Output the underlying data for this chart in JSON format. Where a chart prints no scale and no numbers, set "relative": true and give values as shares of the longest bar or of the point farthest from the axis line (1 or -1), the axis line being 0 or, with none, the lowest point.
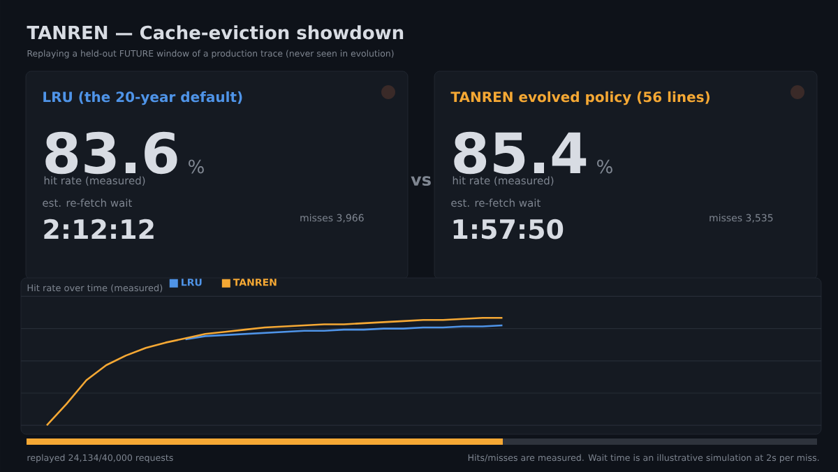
{
  "chart_data": [
    {
      "type": "other",
      "title": "TANREN — Cache-eviction showdown",
      "subtitle": "Replaying a held-out FUTURE window of a production trace (never seen in evolution)",
      "annotations": [
        "LRU (the 20-year default)",
        "83.6",
        "%",
        "hit rate (measured)",
        "est. re-fetch wait",
        "2:12:12",
        "misses 3,966",
        "vs",
        "TANREN evolved policy (56 lines)",
        "85.4",
        "%",
        "hit rate (measured)",
        "est. re-fetch wait",
        "1:57:50",
        "misses 3,535"
      ]
    },
    {
      "type": "line",
      "title": "Hit rate over time (measured)",
      "relative": true,
      "grid": "y",
      "legend": "top left",
      "categories": [
        null,
        null,
        null,
        null,
        null,
        null,
        null,
        null,
        null,
        null,
        null,
        null,
        null,
        null,
        null,
        null,
        null,
        null,
        null,
        null,
        null,
        null,
        null,
        null,
        null,
        null,
        null,
        null,
        null,
        null,
        null,
        null,
        null,
        null,
        null,
        null,
        null,
        null,
        null,
        null
      ],
      "series": [
        {
          "name": "LRU",
          "color": "#4f94e8",
          "values": [
            null,
            null,
            null,
            null,
            null,
            null,
            null,
            0.8,
            0.83,
            0.84,
            0.85,
            0.86,
            0.87,
            0.88,
            0.88,
            0.89,
            0.89,
            0.9,
            0.9,
            0.91,
            0.91,
            0.92,
            0.92,
            0.93,
            null,
            null,
            null,
            null,
            null,
            null,
            null,
            null,
            null,
            null,
            null,
            null,
            null,
            null,
            null,
            null
          ]
        },
        {
          "name": "TANREN",
          "color": "#f5a834",
          "values": [
            0,
            0.2,
            0.42,
            0.56,
            0.65,
            0.72,
            0.77,
            0.81,
            0.85,
            0.87,
            0.89,
            0.91,
            0.92,
            0.93,
            0.94,
            0.94,
            0.95,
            0.96,
            0.97,
            0.98,
            0.98,
            0.99,
            1.0,
            1.0,
            null,
            null,
            null,
            null,
            null,
            null,
            null,
            null,
            null,
            null,
            null,
            null,
            null,
            null,
            null,
            null
          ]
        }
      ],
      "annotations": [
        "replayed 24,134/40,000 requests",
        "Hits/misses are measured. Wait time is an illustrative simulation at 2s per miss."
      ]
    }
  ]
}
